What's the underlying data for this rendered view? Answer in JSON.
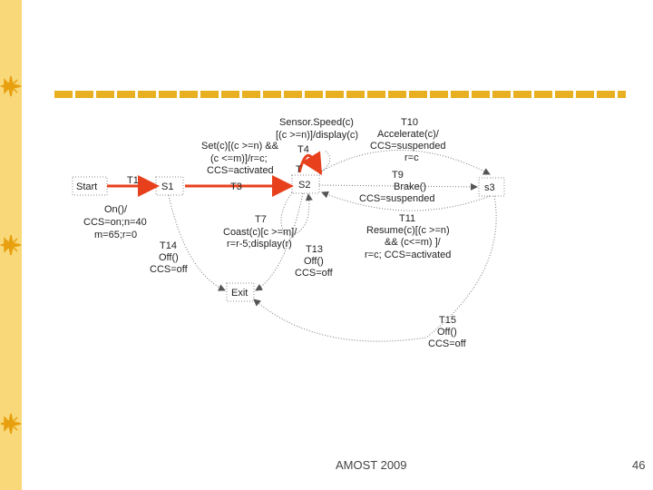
{
  "slide": {
    "footer": "AMOST 2009",
    "page_number": "46"
  },
  "colors": {
    "side_band": "#f8d878",
    "accent_rule": "#e8b020",
    "star": "#e8a010",
    "highlight_arrow": "#e8401c"
  },
  "diagram": {
    "states": {
      "start": "Start",
      "s1": "S1",
      "s2": "S2",
      "s3": "s3",
      "exit": "Exit"
    },
    "transitions": {
      "t1": "T1",
      "t3": "T3",
      "t4": [
        "T4",
        "T"
      ],
      "t5": [
        "Sensor.Speed(c)",
        "[(c >=n)]/display(c)"
      ],
      "t6": [
        "Set(c)[(c >=n) &&",
        "(c <=m)]/r=c;",
        "CCS=activated"
      ],
      "on": [
        "On()/",
        "CCS=on;n=40",
        "m=65;r=0"
      ],
      "t7": [
        "T7",
        "Coast(c)[c >=m]/",
        "r=r-5;display(r)"
      ],
      "t9": [
        "T9",
        "Brake()",
        "CCS=suspended"
      ],
      "t10": [
        "T10",
        "Accelerate(c)/",
        "CCS=suspended",
        "r=c"
      ],
      "t11": [
        "T11",
        "Resume(c)[(c >=n)",
        "&& (c<=m) ]/",
        "r=c; CCS=activated"
      ],
      "t13": [
        "T13",
        "Off()",
        "CCS=off"
      ],
      "t14": [
        "T14",
        "Off()",
        "CCS=off"
      ],
      "t15": [
        "T15",
        "Off()",
        "CCS=off"
      ]
    }
  }
}
